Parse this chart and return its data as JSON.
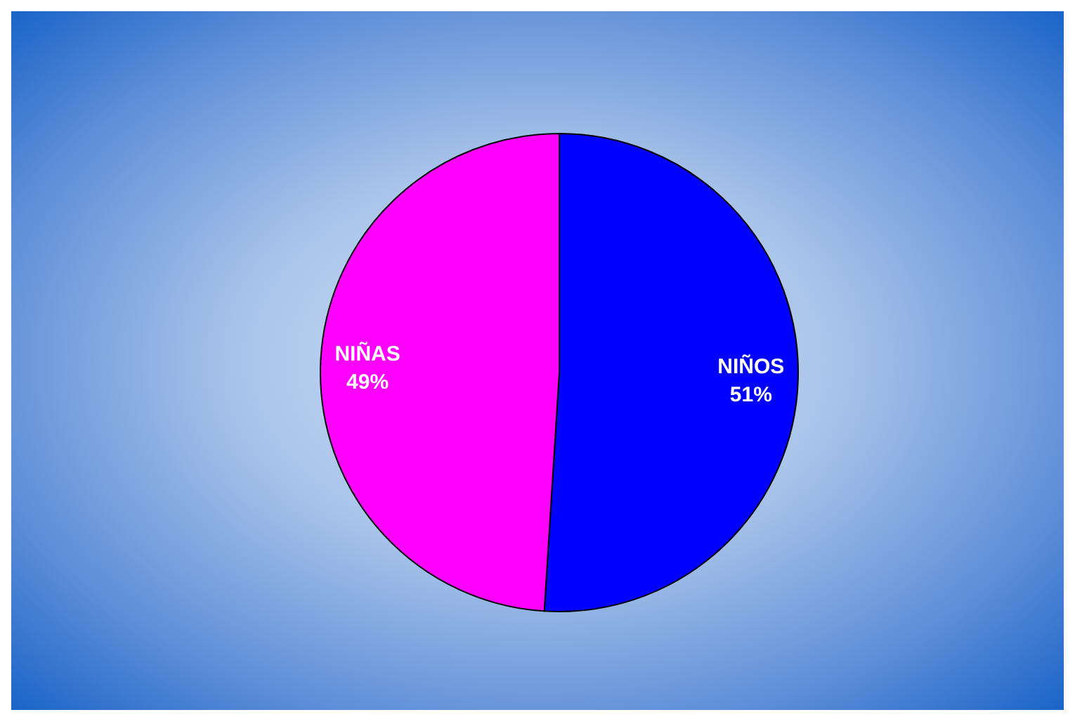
{
  "chart_data": {
    "type": "pie",
    "categories": [
      "NIÑOS",
      "NIÑAS"
    ],
    "values": [
      51,
      49
    ],
    "colors": [
      "#0000ff",
      "#ff00ff"
    ],
    "value_labels": [
      "51%",
      "49%"
    ],
    "legend": false
  }
}
